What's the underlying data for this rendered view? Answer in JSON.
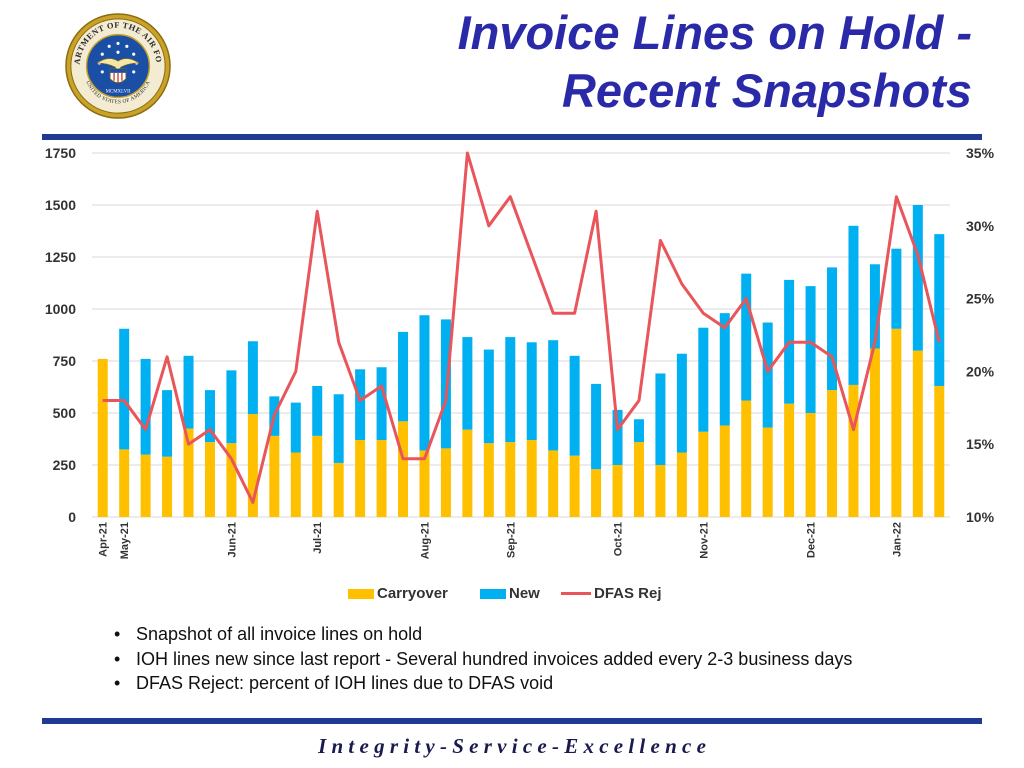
{
  "header": {
    "title_line1": "Invoice Lines on Hold -",
    "title_line2": "Recent Snapshots",
    "seal_text_top": "DEPARTMENT OF THE AIR FORCE",
    "seal_text_bottom": "UNITED STATES OF AMERICA",
    "seal_year": "MCMXLVII"
  },
  "colors": {
    "title": "#2a2aa8",
    "rule": "#1f3a93",
    "carryover": "#ffc000",
    "new": "#00b0f0",
    "dfas": "#e8555a",
    "grid": "#d9d9d9"
  },
  "chart_data": {
    "type": "bar",
    "stacked": true,
    "grid": true,
    "legend_position": "bottom",
    "ylim": [
      0,
      1750
    ],
    "yticks": [
      "0",
      "250",
      "500",
      "750",
      "1000",
      "1250",
      "1500",
      "1750"
    ],
    "y2lim": [
      0.1,
      0.35
    ],
    "y2ticks": [
      "10%",
      "15%",
      "20%",
      "25%",
      "30%",
      "35%"
    ],
    "x_labels": [
      {
        "label": "Apr-21",
        "index": 0
      },
      {
        "label": "May-21",
        "index": 1
      },
      {
        "label": "Jun-21",
        "index": 6
      },
      {
        "label": "Jul-21",
        "index": 10
      },
      {
        "label": "Aug-21",
        "index": 15
      },
      {
        "label": "Sep-21",
        "index": 19
      },
      {
        "label": "Oct-21",
        "index": 24
      },
      {
        "label": "Nov-21",
        "index": 28
      },
      {
        "label": "Dec-21",
        "index": 33
      },
      {
        "label": "Jan-22",
        "index": 37
      }
    ],
    "series": [
      {
        "name": "Carryover",
        "kind": "bar",
        "values": [
          760,
          325,
          300,
          290,
          425,
          360,
          355,
          495,
          390,
          310,
          390,
          260,
          370,
          370,
          460,
          320,
          330,
          420,
          355,
          360,
          370,
          320,
          295,
          230,
          250,
          360,
          250,
          310,
          410,
          440,
          560,
          430,
          545,
          500,
          610,
          635,
          810,
          905,
          800,
          630
        ]
      },
      {
        "name": "New",
        "kind": "bar",
        "values": [
          0,
          580,
          460,
          320,
          350,
          250,
          350,
          350,
          190,
          240,
          240,
          330,
          340,
          350,
          430,
          650,
          620,
          445,
          450,
          505,
          470,
          530,
          480,
          410,
          265,
          110,
          440,
          475,
          500,
          540,
          610,
          505,
          595,
          610,
          590,
          765,
          405,
          385,
          700,
          730
        ]
      },
      {
        "name": "DFAS Rej",
        "kind": "line",
        "axis": "right",
        "values": [
          0.18,
          0.18,
          0.16,
          0.21,
          0.15,
          0.16,
          0.14,
          0.11,
          0.17,
          0.2,
          0.31,
          0.22,
          0.18,
          0.19,
          0.14,
          0.14,
          0.18,
          0.35,
          0.3,
          0.32,
          0.28,
          0.24,
          0.24,
          0.31,
          0.16,
          0.18,
          0.29,
          0.26,
          0.24,
          0.23,
          0.25,
          0.2,
          0.22,
          0.22,
          0.21,
          0.16,
          0.22,
          0.32,
          0.28,
          0.22
        ]
      }
    ]
  },
  "bullets": [
    "Snapshot of all invoice lines on hold",
    "IOH lines new since last report - Several hundred invoices added every 2-3 business days",
    "DFAS Reject: percent of IOH lines due to DFAS void"
  ],
  "footer": {
    "text": "I n t e g r i t y  -  S e r v i c e  -  E x c e l l e n c e"
  }
}
